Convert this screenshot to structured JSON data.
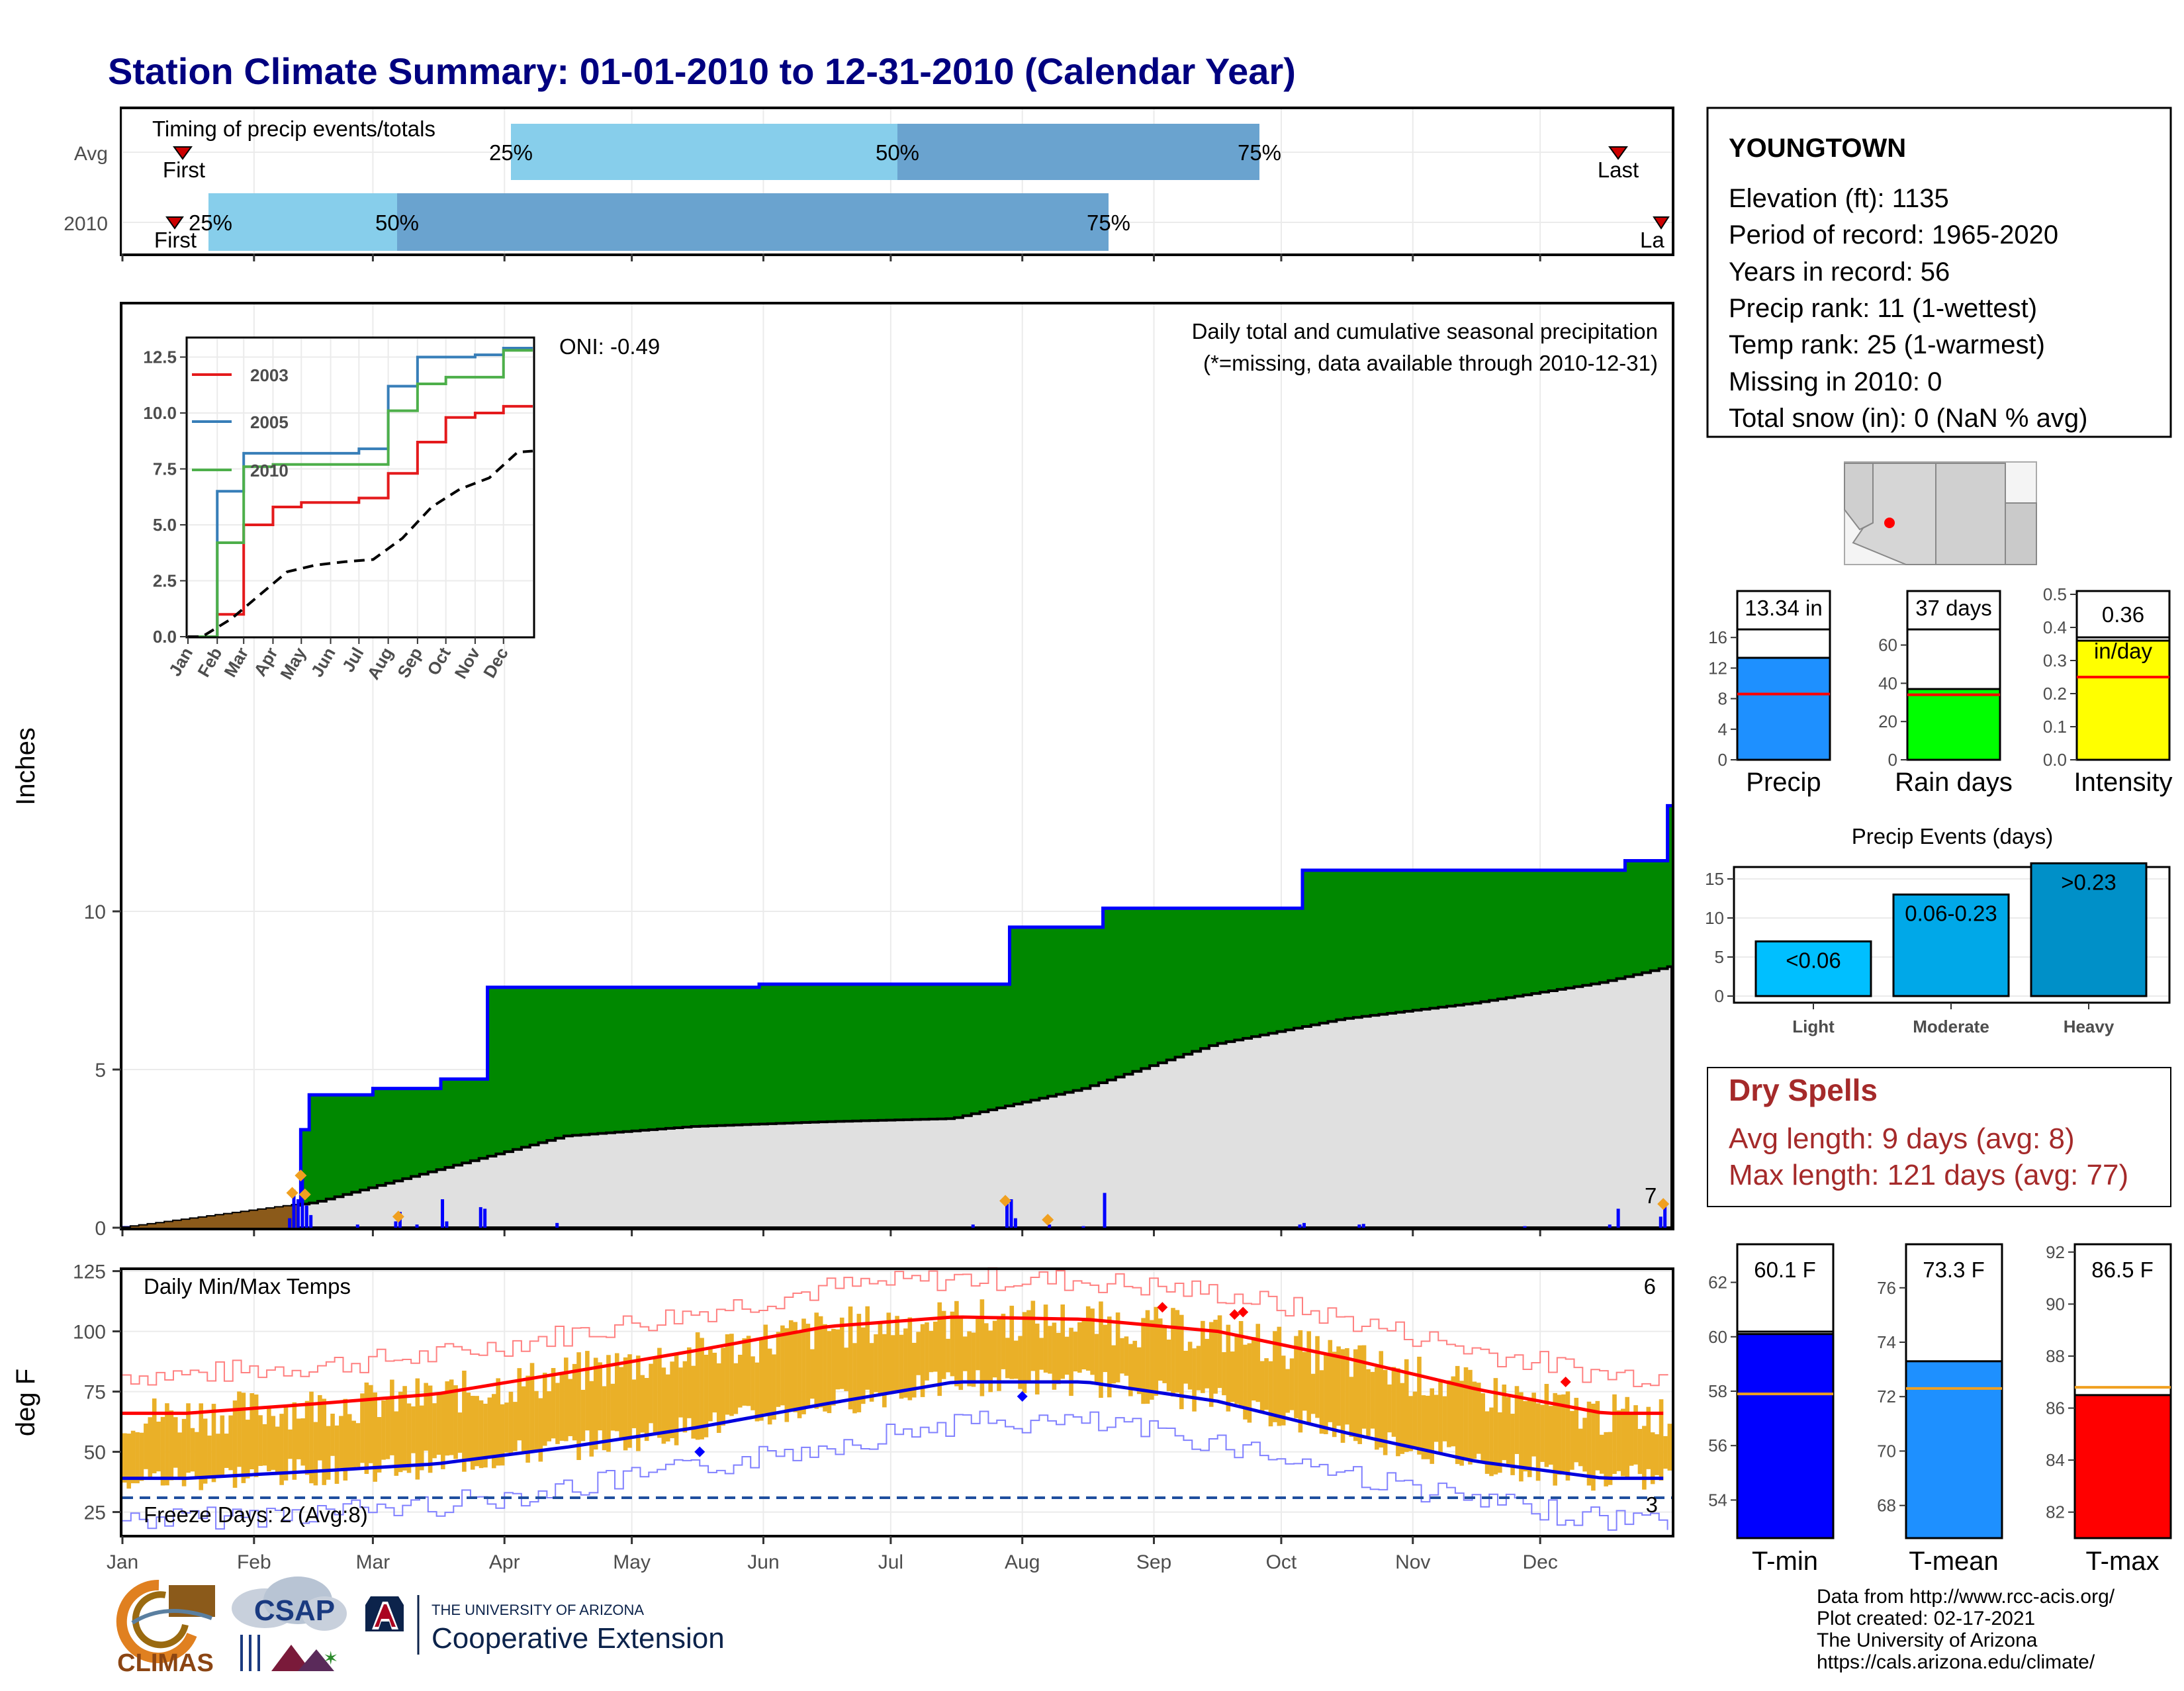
{
  "title": "Station Climate Summary: 01-01-2010 to 12-31-2010 (Calendar Year)",
  "colors": {
    "title": "#000080",
    "precip_green": "#008800",
    "precip_blue": "#0000ff",
    "normal_fill": "#e0e0e0",
    "early_fill": "#8b5a1a",
    "temp_bar": "#eab028",
    "tmax_line": "#ff0000",
    "tmin_line": "#0000dd",
    "q_light": "#87ceeb",
    "q_dark": "#6aa3cf"
  },
  "timing": {
    "panel_title": "Timing of precip events/totals",
    "rows": [
      {
        "name": "Avg",
        "first": "First",
        "last": "Last",
        "q25": "25%",
        "q50": "50%",
        "q75": "75%"
      },
      {
        "name": "2010",
        "first": "First",
        "last": "La",
        "q25": "25%",
        "q50": "50%",
        "q75": "75%"
      }
    ]
  },
  "station": {
    "name": "YOUNGTOWN",
    "lines": [
      "Elevation (ft): 1135",
      "Period of record: 1965-2020",
      "Years in record: 56",
      "Precip rank: 11 (1-wettest)",
      "Temp rank: 25 (1-warmest)",
      "Missing in 2010: 0",
      "Total snow (in): 0 (NaN % avg)"
    ]
  },
  "precip_panel": {
    "title": "Daily total and cumulative seasonal precipitation",
    "note": "(*=missing, data available through 2010-12-31)",
    "oni": "ONI: -0.49",
    "ylabel": "Inches",
    "yticks": [
      "0",
      "5",
      "10"
    ],
    "end_label": "7"
  },
  "inset": {
    "legend": [
      "2003",
      "2005",
      "2010"
    ],
    "yticks": [
      "0.0",
      "2.5",
      "5.0",
      "7.5",
      "10.0",
      "12.5"
    ],
    "xticks": [
      "Jan",
      "Feb",
      "Mar",
      "Apr",
      "May",
      "Jun",
      "Jul",
      "Aug",
      "Sep",
      "Oct",
      "Nov",
      "Dec"
    ]
  },
  "months": [
    "Jan",
    "Feb",
    "Mar",
    "Apr",
    "May",
    "Jun",
    "Jul",
    "Aug",
    "Sep",
    "Oct",
    "Nov",
    "Dec"
  ],
  "temp_panel": {
    "title": "Daily Min/Max Temps",
    "ylabel": "deg F",
    "yticks": [
      "25",
      "50",
      "75",
      "100",
      "125"
    ],
    "freeze": "Freeze Days: 2 (Avg:8)",
    "hot_count": "6",
    "cold_count": "3"
  },
  "bars_top": [
    {
      "label": "Precip",
      "value_label": "13.34 in",
      "yticks": [
        "0",
        "4",
        "8",
        "12",
        "16"
      ]
    },
    {
      "label": "Rain days",
      "value_label": "37 days",
      "yticks": [
        "0",
        "20",
        "40",
        "60"
      ]
    },
    {
      "label": "Intensity",
      "value_label": "0.36",
      "value_label2": "in/day",
      "yticks": [
        "0.0",
        "0.1",
        "0.2",
        "0.3",
        "0.4",
        "0.5"
      ]
    }
  ],
  "events": {
    "title": "Precip Events (days)",
    "yticks": [
      "0",
      "5",
      "10",
      "15"
    ],
    "categories": [
      "Light",
      "Moderate",
      "Heavy"
    ],
    "bar_labels": [
      "<0.06",
      "0.06-0.23",
      ">0.23"
    ]
  },
  "dry": {
    "title": "Dry Spells",
    "avg": "Avg length: 9 days (avg: 8)",
    "max": "Max length: 121 days (avg: 77)"
  },
  "bars_temp": [
    {
      "label": "T-min",
      "value_label": "60.1 F",
      "yticks": [
        "54",
        "56",
        "58",
        "60",
        "62"
      ]
    },
    {
      "label": "T-mean",
      "value_label": "73.3 F",
      "yticks": [
        "68",
        "70",
        "72",
        "74",
        "76"
      ]
    },
    {
      "label": "T-max",
      "value_label": "86.5 F",
      "yticks": [
        "82",
        "84",
        "86",
        "88",
        "90",
        "92"
      ]
    }
  ],
  "credits": [
    "Data from http://www.rcc-acis.org/",
    "Plot created: 02-17-2021",
    "The University of Arizona",
    "https://cals.arizona.edu/climate/"
  ],
  "logos": {
    "climas": "CLIMAS",
    "csap": "CSAP",
    "ua_small": "THE UNIVERSITY OF ARIZONA",
    "ua_big": "Cooperative Extension"
  },
  "chart_data": [
    {
      "type": "area",
      "title": "Daily total and cumulative seasonal precipitation",
      "ylabel": "Inches",
      "ylim": [
        0,
        13.5
      ],
      "series": [
        {
          "name": "cumulative 2010 (green)",
          "x": [
            "2010-01-01",
            "2010-02-10",
            "2010-02-12",
            "2010-02-14",
            "2010-03-01",
            "2010-03-17",
            "2010-03-28",
            "2010-05-31",
            "2010-07-22",
            "2010-07-29",
            "2010-08-20",
            "2010-10-06",
            "2010-12-21",
            "2010-12-31"
          ],
          "values": [
            0,
            0.2,
            3.1,
            4.2,
            4.4,
            4.7,
            7.6,
            7.7,
            7.7,
            9.5,
            10.1,
            11.3,
            11.6,
            13.34
          ]
        },
        {
          "name": "normal cumulative (grey)",
          "x": [
            "2010-01-01",
            "2010-02-15",
            "2010-03-15",
            "2010-04-15",
            "2010-05-15",
            "2010-06-15",
            "2010-07-15",
            "2010-08-15",
            "2010-09-15",
            "2010-10-15",
            "2010-11-15",
            "2010-12-15",
            "2010-12-31"
          ],
          "values": [
            0,
            0.8,
            1.8,
            2.9,
            3.2,
            3.35,
            3.45,
            4.4,
            5.8,
            6.6,
            7.1,
            7.75,
            8.25
          ]
        }
      ],
      "daily_precip": [
        {
          "x": "2010-02-10",
          "y": 1.2
        },
        {
          "x": "2010-02-13",
          "y": 1.6
        },
        {
          "x": "2010-03-01",
          "y": 0.9
        },
        {
          "x": "2010-03-08",
          "y": 0.6
        },
        {
          "x": "2010-07-30",
          "y": 0.8
        },
        {
          "x": "2010-08-21",
          "y": 1.1
        },
        {
          "x": "2010-12-30",
          "y": 0.7
        }
      ]
    },
    {
      "type": "line",
      "title": "",
      "ylim": [
        0,
        13.5
      ],
      "series": [
        {
          "name": "2003",
          "x": [
            "Jan",
            "Feb",
            "Mar",
            "Apr",
            "May",
            "Jun",
            "Jul",
            "Aug",
            "Sep",
            "Oct",
            "Nov",
            "Dec"
          ],
          "values": [
            0,
            1.0,
            5.0,
            5.8,
            6.0,
            6.0,
            6.2,
            7.3,
            8.7,
            9.8,
            10.0,
            10.3
          ]
        },
        {
          "name": "2005",
          "x": [
            "Jan",
            "Feb",
            "Mar",
            "Apr",
            "May",
            "Jun",
            "Jul",
            "Aug",
            "Sep",
            "Oct",
            "Nov",
            "Dec"
          ],
          "values": [
            0,
            6.5,
            8.2,
            8.2,
            8.2,
            8.2,
            8.4,
            11.2,
            12.5,
            12.5,
            12.6,
            12.9
          ]
        },
        {
          "name": "2010",
          "x": [
            "Jan",
            "Feb",
            "Mar",
            "Apr",
            "May",
            "Jun",
            "Jul",
            "Aug",
            "Sep",
            "Oct",
            "Nov",
            "Dec"
          ],
          "values": [
            0,
            4.2,
            7.6,
            7.7,
            7.7,
            7.7,
            7.7,
            10.1,
            11.3,
            11.6,
            11.6,
            12.8
          ]
        },
        {
          "name": "avg",
          "x": [
            "Jan",
            "Feb",
            "Mar",
            "Apr",
            "May",
            "Jun",
            "Jul",
            "Aug",
            "Sep",
            "Oct",
            "Nov",
            "Dec"
          ],
          "values": [
            0,
            0.8,
            1.8,
            2.9,
            3.2,
            3.35,
            3.45,
            4.4,
            5.8,
            6.6,
            7.1,
            8.25
          ]
        }
      ]
    },
    {
      "type": "line",
      "title": "Daily Min/Max Temps",
      "ylabel": "deg F",
      "ylim": [
        15,
        127
      ],
      "series": [
        {
          "name": "normal max",
          "x": [
            "Jan",
            "Feb",
            "Mar",
            "Apr",
            "May",
            "Jun",
            "Jul",
            "Aug",
            "Sep",
            "Oct",
            "Nov",
            "Dec"
          ],
          "values": [
            66,
            70,
            74,
            83,
            92,
            102,
            106,
            105,
            100,
            89,
            76,
            66
          ]
        },
        {
          "name": "normal min",
          "x": [
            "Jan",
            "Feb",
            "Mar",
            "Apr",
            "May",
            "Jun",
            "Jul",
            "Aug",
            "Sep",
            "Oct",
            "Nov",
            "Dec"
          ],
          "values": [
            39,
            42,
            45,
            52,
            60,
            70,
            79,
            79,
            71,
            58,
            46,
            39
          ]
        }
      ],
      "freeze_line": 32
    },
    {
      "type": "bar",
      "categories": [
        "Precip",
        "Rain days",
        "Intensity"
      ],
      "values": [
        13.34,
        37,
        0.36
      ],
      "normals": [
        8.6,
        34,
        0.25
      ]
    },
    {
      "type": "bar",
      "title": "Precip Events (days)",
      "categories": [
        "Light",
        "Moderate",
        "Heavy"
      ],
      "values": [
        7,
        13,
        17
      ],
      "ylim": [
        0,
        17
      ]
    },
    {
      "type": "bar",
      "categories": [
        "T-min",
        "T-mean",
        "T-max"
      ],
      "values": [
        60.1,
        73.3,
        86.5
      ],
      "normals": [
        57.9,
        72.3,
        86.8
      ]
    }
  ]
}
